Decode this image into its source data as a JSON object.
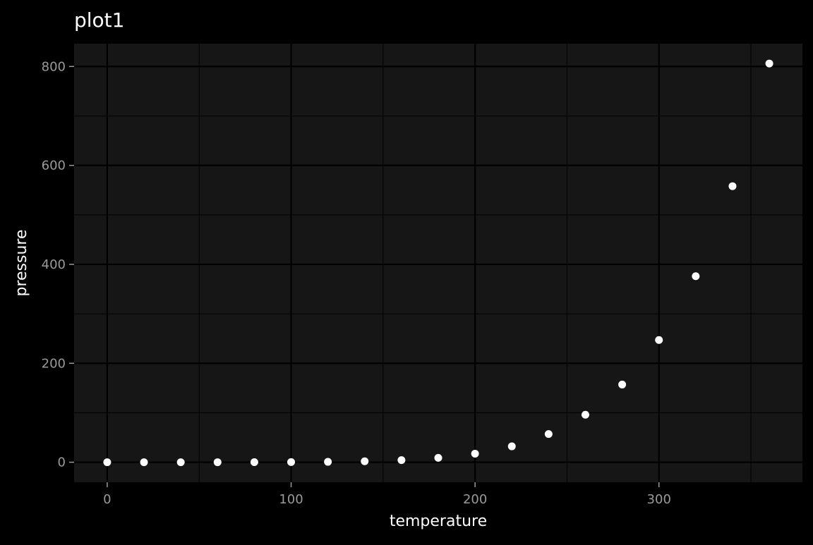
{
  "chart_data": {
    "type": "scatter",
    "title": "plot1",
    "xlabel": "temperature",
    "ylabel": "pressure",
    "xlim": [
      -18,
      378
    ],
    "ylim": [
      -40.5,
      846
    ],
    "x_ticks": [
      0,
      100,
      200,
      300
    ],
    "y_ticks": [
      0,
      200,
      400,
      600,
      800
    ],
    "x_minor_ticks": [
      50,
      150,
      250,
      350
    ],
    "y_minor_ticks": [
      100,
      300,
      500,
      700
    ],
    "grid": true,
    "colors": {
      "background": "#000000",
      "panel": "#161616",
      "grid": "#000000",
      "points": "#ffffff",
      "text": "#ffffff",
      "tick_text": "#9a9a9a"
    },
    "points": [
      {
        "x": 0,
        "y": 0.0002
      },
      {
        "x": 20,
        "y": 0.0012
      },
      {
        "x": 40,
        "y": 0.006
      },
      {
        "x": 60,
        "y": 0.03
      },
      {
        "x": 80,
        "y": 0.09
      },
      {
        "x": 100,
        "y": 0.27
      },
      {
        "x": 120,
        "y": 0.75
      },
      {
        "x": 140,
        "y": 1.85
      },
      {
        "x": 160,
        "y": 4.2
      },
      {
        "x": 180,
        "y": 8.8
      },
      {
        "x": 200,
        "y": 17.3
      },
      {
        "x": 220,
        "y": 32.1
      },
      {
        "x": 240,
        "y": 57
      },
      {
        "x": 260,
        "y": 96
      },
      {
        "x": 280,
        "y": 157
      },
      {
        "x": 300,
        "y": 247
      },
      {
        "x": 320,
        "y": 376
      },
      {
        "x": 340,
        "y": 558
      },
      {
        "x": 360,
        "y": 806
      }
    ]
  }
}
